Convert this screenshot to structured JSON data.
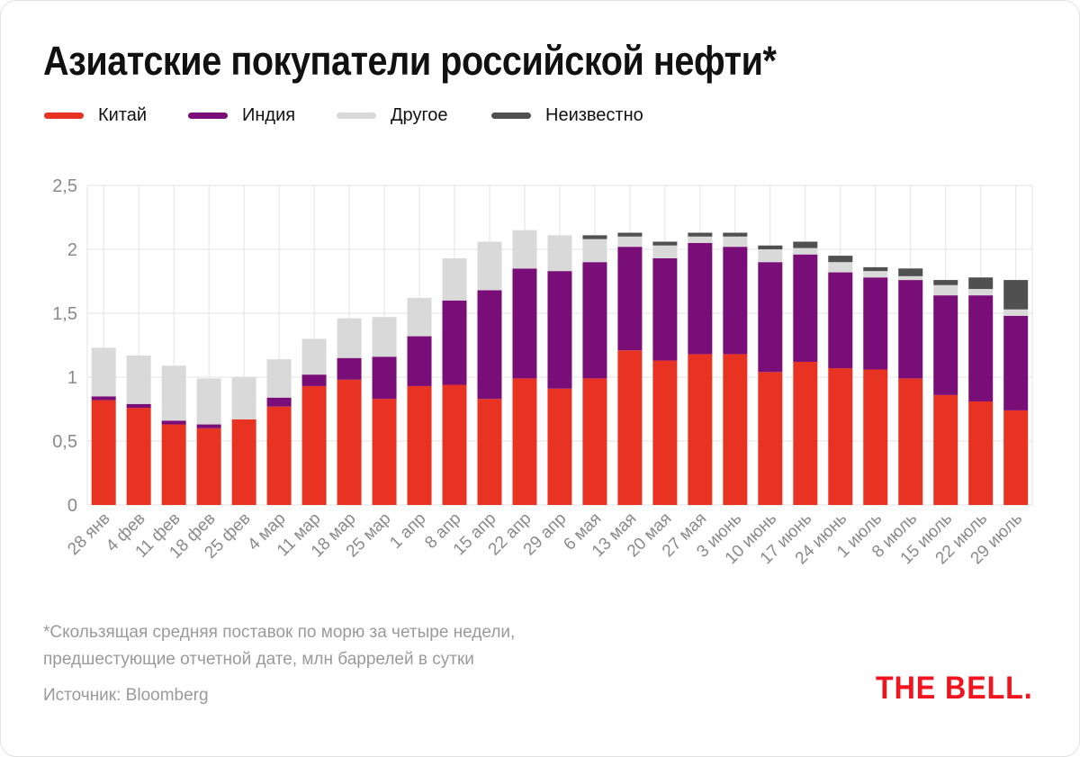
{
  "title": "Азиатские покупатели российской нефти*",
  "legend": [
    {
      "label": "Китай",
      "color": "#e83323"
    },
    {
      "label": "Индия",
      "color": "#7a0e78"
    },
    {
      "label": "Другое",
      "color": "#d9d9d9"
    },
    {
      "label": "Неизвестно",
      "color": "#505050"
    }
  ],
  "footnote": {
    "line1": "*Скользящая средняя поставок по морю за четыре недели,",
    "line2": "предшестующие отчетной дате, млн баррелей в сутки",
    "source": "Источник: Bloomberg"
  },
  "logo": "THE BELL.",
  "chart_data": {
    "type": "bar",
    "stacked": true,
    "title": "Азиатские покупатели российской нефти*",
    "xlabel": "",
    "ylabel": "",
    "ylim": [
      0,
      2.5
    ],
    "yticks": [
      0,
      0.5,
      1,
      1.5,
      2,
      2.5
    ],
    "ytick_labels": [
      "0",
      "0,5",
      "1",
      "1,5",
      "2",
      "2,5"
    ],
    "grid": true,
    "legend_position": "top-left",
    "categories": [
      "28 янв",
      "4 фев",
      "11 фев",
      "18 фев",
      "25 фев",
      "4 мар",
      "11 мар",
      "18 мар",
      "25 мар",
      "1 апр",
      "8 апр",
      "15 апр",
      "22 апр",
      "29 апр",
      "6 мая",
      "13 мая",
      "20 мая",
      "27 мая",
      "3 июнь",
      "10 июнь",
      "17 июнь",
      "24 июнь",
      "1 июль",
      "8 июль",
      "15 июль",
      "22 июль",
      "29 июль"
    ],
    "series": [
      {
        "name": "Китай",
        "color": "#e83323",
        "values": [
          0.82,
          0.76,
          0.63,
          0.6,
          0.67,
          0.77,
          0.93,
          0.98,
          0.83,
          0.93,
          0.94,
          0.83,
          0.99,
          0.91,
          0.99,
          1.21,
          1.13,
          1.18,
          1.18,
          1.04,
          1.12,
          1.07,
          1.06,
          0.99,
          0.86,
          0.81,
          0.74
        ]
      },
      {
        "name": "Индия",
        "color": "#7a0e78",
        "values": [
          0.03,
          0.03,
          0.03,
          0.03,
          0.0,
          0.07,
          0.09,
          0.17,
          0.33,
          0.39,
          0.66,
          0.85,
          0.86,
          0.92,
          0.91,
          0.81,
          0.8,
          0.87,
          0.84,
          0.86,
          0.84,
          0.75,
          0.72,
          0.77,
          0.78,
          0.83,
          0.74
        ]
      },
      {
        "name": "Другое",
        "color": "#d9d9d9",
        "values": [
          0.38,
          0.38,
          0.43,
          0.36,
          0.33,
          0.3,
          0.28,
          0.31,
          0.31,
          0.3,
          0.33,
          0.38,
          0.3,
          0.28,
          0.18,
          0.08,
          0.1,
          0.05,
          0.08,
          0.1,
          0.05,
          0.08,
          0.05,
          0.03,
          0.08,
          0.05,
          0.05
        ]
      },
      {
        "name": "Неизвестно",
        "color": "#505050",
        "values": [
          0,
          0,
          0,
          0,
          0,
          0,
          0,
          0,
          0,
          0,
          0,
          0,
          0,
          0,
          0.03,
          0.03,
          0.03,
          0.03,
          0.03,
          0.03,
          0.05,
          0.05,
          0.03,
          0.06,
          0.04,
          0.09,
          0.23
        ]
      }
    ]
  }
}
